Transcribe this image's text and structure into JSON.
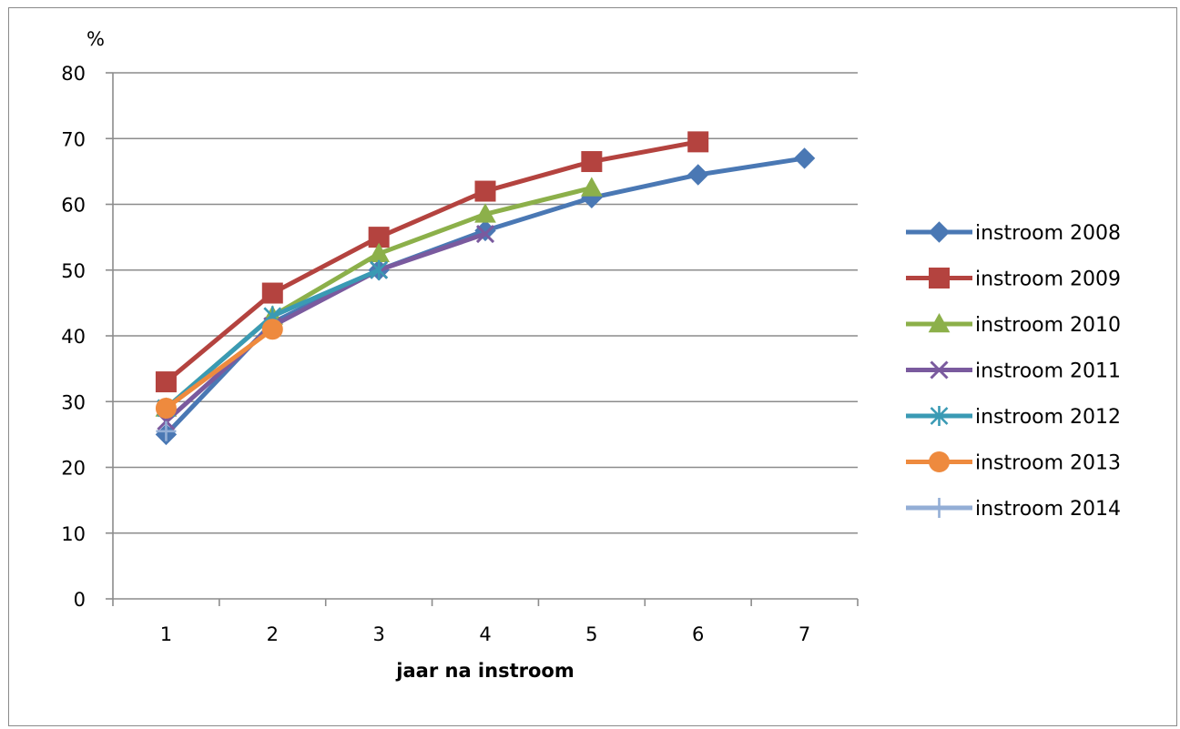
{
  "chart_data": {
    "type": "line",
    "ylabel": "%",
    "xlabel": "jaar na instroom",
    "ylim": [
      0,
      80
    ],
    "yticks": [
      "0",
      "10",
      "20",
      "30",
      "40",
      "50",
      "60",
      "70",
      "80"
    ],
    "x": [
      "1",
      "2",
      "3",
      "4",
      "5",
      "6",
      "7"
    ],
    "grid": true,
    "legend": "right",
    "series": [
      {
        "name": "instroom 2008",
        "color": "#4a78b4",
        "marker": "diamond",
        "values": [
          25,
          42,
          50,
          56,
          61,
          64.5,
          67
        ]
      },
      {
        "name": "instroom 2009",
        "color": "#b4433f",
        "marker": "square",
        "values": [
          33,
          46.5,
          55,
          62,
          66.5,
          69.5,
          null
        ]
      },
      {
        "name": "instroom 2010",
        "color": "#8cb04a",
        "marker": "triangle",
        "values": [
          29,
          43,
          52.5,
          58.5,
          62.5,
          null,
          null
        ]
      },
      {
        "name": "instroom 2011",
        "color": "#7a5a9e",
        "marker": "x",
        "values": [
          27,
          41.5,
          50,
          55.5,
          null,
          null,
          null
        ]
      },
      {
        "name": "instroom 2012",
        "color": "#3a9ab4",
        "marker": "star",
        "values": [
          29,
          43,
          50,
          null,
          null,
          null,
          null
        ]
      },
      {
        "name": "instroom 2013",
        "color": "#ee8a3e",
        "marker": "circle",
        "values": [
          29,
          41,
          null,
          null,
          null,
          null,
          null
        ]
      },
      {
        "name": "instroom 2014",
        "color": "#93aed6",
        "marker": "plus",
        "values": [
          25.5,
          null,
          null,
          null,
          null,
          null,
          null
        ]
      }
    ]
  }
}
